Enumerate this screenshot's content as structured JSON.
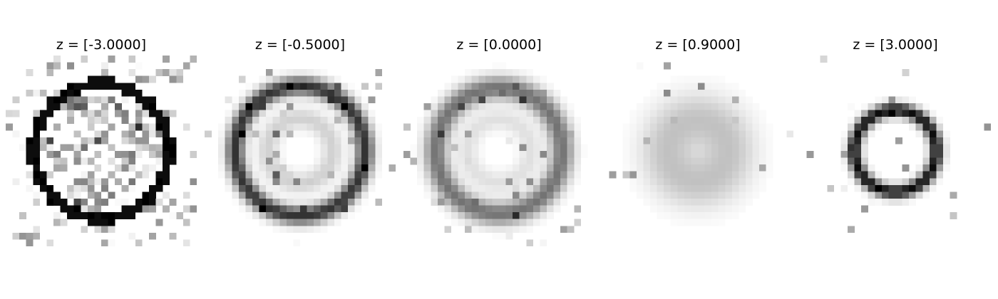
{
  "panels": [
    {
      "title": "z = [-3.0000]",
      "ring_intensity": 0.95,
      "ring_radius": 0.7,
      "ring_width": 0.06,
      "inner_ring": 0.0,
      "blur": 0.0,
      "noise": 0.2,
      "center_noise": 0.3
    },
    {
      "title": "z = [-0.5000]",
      "ring_intensity": 0.8,
      "ring_radius": 0.68,
      "ring_width": 0.08,
      "inner_ring": 0.18,
      "blur": 0.25,
      "noise": 0.05,
      "center_noise": 0.05
    },
    {
      "title": "z = [0.0000]",
      "ring_intensity": 0.55,
      "ring_radius": 0.66,
      "ring_width": 0.1,
      "inner_ring": 0.12,
      "blur": 0.35,
      "noise": 0.04,
      "center_noise": 0.03
    },
    {
      "title": "z = [0.9000]",
      "ring_intensity": 0.18,
      "ring_radius": 0.35,
      "ring_width": 0.25,
      "inner_ring": 0.0,
      "blur": 0.6,
      "noise": 0.02,
      "center_noise": 0.0
    },
    {
      "title": "z = [3.0000]",
      "ring_intensity": 0.95,
      "ring_radius": 0.43,
      "ring_width": 0.07,
      "inner_ring": 0.0,
      "blur": 0.15,
      "noise": 0.03,
      "center_noise": 0.0
    }
  ]
}
